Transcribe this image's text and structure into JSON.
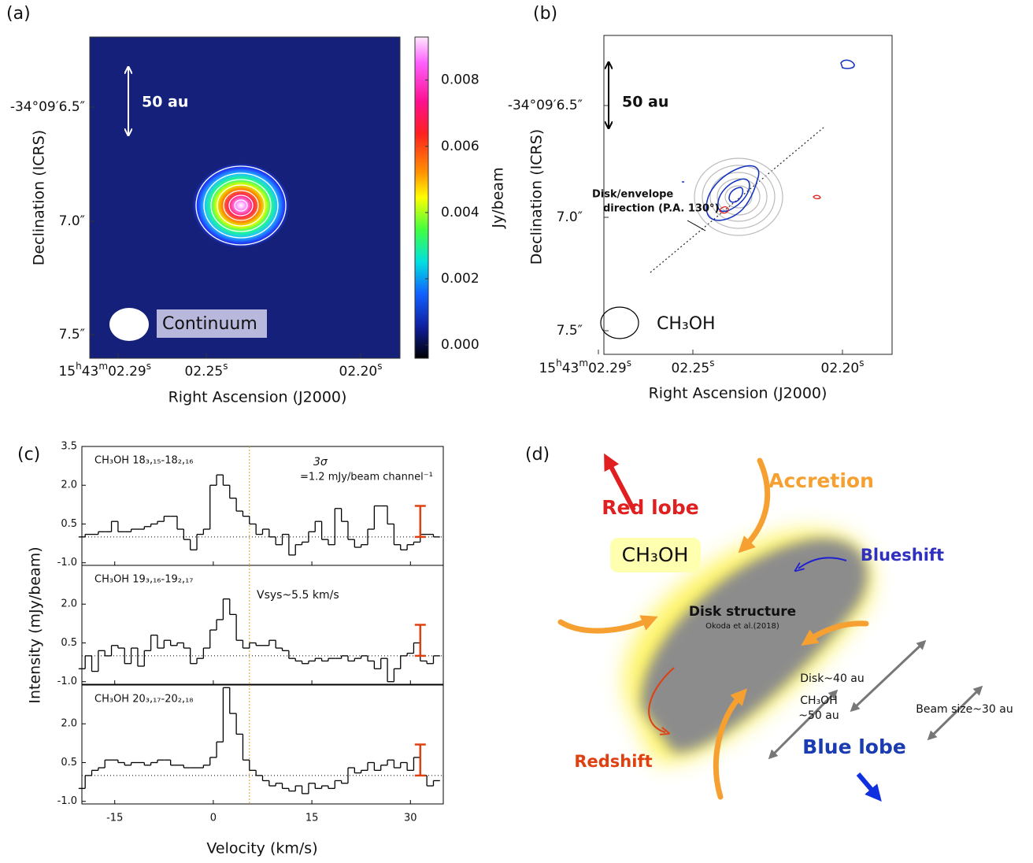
{
  "panel_labels": [
    "(a)",
    "(b)",
    "(c)",
    "(d)"
  ],
  "panel_a": {
    "y_axis_label": "Declination (ICRS)",
    "x_axis_label": "Right Ascension (J2000)",
    "yticks": [
      "-34°09′6.5″",
      "7.0″",
      "7.5″"
    ],
    "xticks": [
      "15h43m02.29s",
      "02.25s",
      "02.20s"
    ],
    "scale_bar": "50 au",
    "beam_label": "Continuum",
    "colorbar": {
      "label": "Jy/beam",
      "clim": [
        -0.0004,
        0.0093
      ],
      "ticks": [
        0.008,
        0.006,
        0.004,
        0.002,
        {
          "value": 0,
          "label": "0.000"
        }
      ]
    }
  },
  "panel_b": {
    "y_axis_label": "Declination (ICRS)",
    "x_axis_label": "Right Ascension (J2000)",
    "yticks": [
      "-34°09′6.5″",
      "7.0″",
      "7.5″"
    ],
    "xticks": [
      "15h43m02.29s",
      "02.25s",
      "02.20s"
    ],
    "scale_bar": "50 au",
    "direction_label": [
      "Disk/envelope",
      "direction (P.A. 130°)"
    ],
    "beam_label": "CH₃OH"
  },
  "panel_c": {
    "x_axis_label": "Velocity (km/s)",
    "y_axis_label": "Intensity (mJy/beam)",
    "noise_label": [
      "3σ",
      "=1.2 mJy/beam channel⁻¹"
    ],
    "vsys_label": "Vsys~5.5 km/s"
  },
  "chart_data": [
    {
      "type": "step",
      "title": "CH₃OH 18₃,₁₅-18₂,₁₆",
      "x": [
        -20,
        -19,
        -18,
        -17,
        -16,
        -15,
        -14,
        -13,
        -12,
        -11,
        -10,
        -9,
        -8,
        -7,
        -6,
        -5,
        -4,
        -3,
        -2,
        -1,
        0,
        1,
        2,
        3,
        4,
        5,
        6,
        7,
        8,
        9,
        10,
        11,
        12,
        13,
        14,
        15,
        16,
        17,
        18,
        19,
        20,
        21,
        22,
        23,
        24,
        25,
        26,
        27,
        28,
        29,
        30,
        31,
        32,
        33,
        34
      ],
      "values": [
        0.0,
        0.1,
        0.1,
        0.2,
        0.2,
        0.6,
        0.2,
        0.2,
        0.3,
        0.3,
        0.4,
        0.5,
        0.6,
        0.8,
        0.8,
        0.3,
        -0.1,
        -0.5,
        0.1,
        0.3,
        2.0,
        2.4,
        2.0,
        1.5,
        1.0,
        0.8,
        0.5,
        0.1,
        0.3,
        0.0,
        -0.3,
        0.1,
        -0.7,
        -0.3,
        -0.2,
        0.2,
        0.6,
        -0.1,
        -0.3,
        1.1,
        0.6,
        -0.1,
        -0.4,
        -0.3,
        0.3,
        1.2,
        1.2,
        0.5,
        -0.3,
        -0.5,
        -0.3,
        -0.2,
        0.1,
        0.1,
        0.0
      ],
      "xlim": [
        -20,
        35
      ],
      "xticks": [
        -15,
        0,
        15,
        30
      ],
      "ylim": [
        -1.1,
        3.5
      ],
      "yticks": [
        3.5,
        {
          "value": 2,
          "label": "2.0"
        },
        0.5,
        {
          "value": -1,
          "label": "-1.0"
        }
      ],
      "vline": 5.5,
      "noise_bar": {
        "x": 31.5,
        "value": 1.2
      }
    },
    {
      "type": "step",
      "title": "CH₃OH 19₃,₁₆-19₂,₁₇",
      "x": [
        -20,
        -19,
        -18,
        -17,
        -16,
        -15,
        -14,
        -13,
        -12,
        -11,
        -10,
        -9,
        -8,
        -7,
        -6,
        -5,
        -4,
        -3,
        -2,
        -1,
        0,
        1,
        2,
        3,
        4,
        5,
        6,
        7,
        8,
        9,
        10,
        11,
        12,
        13,
        14,
        15,
        16,
        17,
        18,
        19,
        20,
        21,
        22,
        23,
        24,
        25,
        26,
        27,
        28,
        29,
        30,
        31,
        32,
        33,
        34
      ],
      "values": [
        -0.5,
        0.0,
        -0.6,
        0.2,
        0.0,
        0.4,
        0.3,
        -0.3,
        0.3,
        -0.4,
        0.2,
        0.8,
        0.3,
        0.6,
        0.4,
        0.5,
        0.3,
        -0.3,
        -0.1,
        0.3,
        1.0,
        1.4,
        2.2,
        1.6,
        0.6,
        0.3,
        0.5,
        0.4,
        0.4,
        0.6,
        0.3,
        0.2,
        -0.1,
        -0.2,
        -0.3,
        -0.2,
        -0.1,
        -0.2,
        -0.1,
        -0.1,
        0.0,
        -0.2,
        -0.1,
        0.0,
        -0.2,
        -0.5,
        -0.1,
        -1.0,
        -0.5,
        0.0,
        0.1,
        0.5,
        -0.2,
        -0.3,
        0.0
      ],
      "xlim": [
        -20,
        35
      ],
      "xticks": [
        -15,
        0,
        15,
        30
      ],
      "ylim": [
        -1.1,
        3.5
      ],
      "yticks": [
        {
          "value": 2,
          "label": "2.0"
        },
        0.5,
        {
          "value": -1,
          "label": "-1.0"
        }
      ],
      "vline": 5.5,
      "noise_bar": {
        "x": 31.5,
        "value": 1.2
      }
    },
    {
      "type": "step",
      "title": "CH₃OH 20₃,₁₇-20₂,₁₈",
      "x": [
        -20,
        -19,
        -18,
        -17,
        -16,
        -15,
        -14,
        -13,
        -12,
        -11,
        -10,
        -9,
        -8,
        -7,
        -6,
        -5,
        -4,
        -3,
        -2,
        -1,
        0,
        1,
        2,
        3,
        4,
        5,
        6,
        7,
        8,
        9,
        10,
        11,
        12,
        13,
        14,
        15,
        16,
        17,
        18,
        19,
        20,
        21,
        22,
        23,
        24,
        25,
        26,
        27,
        28,
        29,
        30,
        31,
        32,
        33,
        34
      ],
      "values": [
        -0.5,
        0.0,
        0.2,
        0.3,
        0.6,
        0.6,
        0.5,
        0.4,
        0.5,
        0.5,
        0.4,
        0.5,
        0.6,
        0.6,
        0.4,
        0.4,
        0.3,
        0.3,
        0.3,
        0.4,
        0.7,
        1.3,
        3.4,
        2.4,
        1.6,
        0.6,
        0.2,
        0.0,
        -0.2,
        -0.4,
        -0.3,
        -0.5,
        -0.6,
        -0.4,
        -0.7,
        -0.3,
        -0.5,
        -0.4,
        -0.5,
        -0.2,
        -0.3,
        0.3,
        0.1,
        0.2,
        0.5,
        0.2,
        0.4,
        0.6,
        0.3,
        0.5,
        0.2,
        0.7,
        0.0,
        -0.4,
        -0.2
      ],
      "xlim": [
        -20,
        35
      ],
      "xticks": [
        -15,
        0,
        15,
        30
      ],
      "ylim": [
        -1.1,
        3.5
      ],
      "yticks": [
        {
          "value": 2,
          "label": "2.0"
        },
        0.5,
        {
          "value": -1,
          "label": "-1.0"
        }
      ],
      "vline": 5.5,
      "noise_bar": {
        "x": 31.5,
        "value": 1.2
      }
    }
  ],
  "panel_d": {
    "red_lobe": "Red lobe",
    "accretion": "Accretion",
    "molecule": "CH₃OH",
    "blueshift": "Blueshift",
    "disk_structure": "Disk structure",
    "reference": "Okoda et al.(2018)",
    "disk_size": "Disk~40 au",
    "ch3oh_size": [
      "CH₃OH",
      "~50 au"
    ],
    "beam_size": "Beam size~30 au",
    "blue_lobe": "Blue lobe",
    "redshift": "Redshift"
  }
}
